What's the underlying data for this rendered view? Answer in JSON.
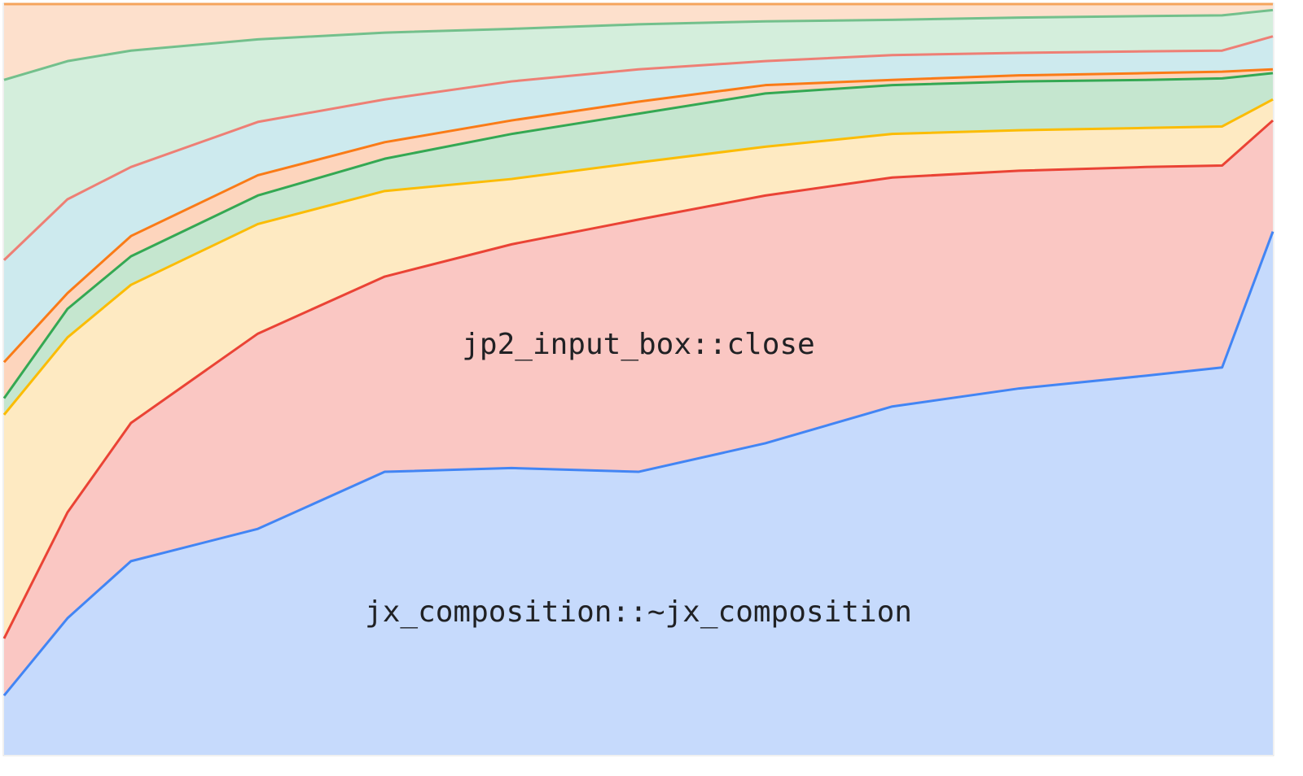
{
  "chart_data": {
    "type": "stacked-area",
    "x": [
      0,
      5,
      10,
      20,
      30,
      40,
      50,
      60,
      70,
      80,
      90,
      96,
      100
    ],
    "xlim": [
      0,
      100
    ],
    "ylim": [
      0,
      100
    ],
    "series": [
      {
        "name": "jx_composition::~jx_composition",
        "color": "#4285f4",
        "fill": "#c6dafc",
        "values": [
          7.9,
          18.2,
          25.8,
          30.1,
          37.7,
          38.2,
          37.7,
          41.5,
          46.4,
          48.8,
          50.5,
          51.6,
          69.7
        ]
      },
      {
        "name": "jp2_input_box::close",
        "color": "#ea4335",
        "fill": "#fac7c3",
        "values": [
          7.6,
          14.1,
          18.4,
          26.0,
          26.0,
          29.8,
          33.6,
          33.0,
          30.5,
          29.0,
          27.8,
          26.9,
          14.8
        ]
      },
      {
        "color": "#fbbc04",
        "fill": "#feeac2",
        "values": [
          29.8,
          23.3,
          18.4,
          14.6,
          11.4,
          8.7,
          7.6,
          6.5,
          5.8,
          5.4,
          5.2,
          5.2,
          2.8
        ]
      },
      {
        "color": "#34a853",
        "fill": "#c5e6cf",
        "values": [
          2.2,
          3.8,
          3.8,
          3.8,
          4.3,
          6.0,
          6.5,
          7.1,
          6.5,
          6.5,
          6.4,
          6.4,
          3.5
        ]
      },
      {
        "color": "#fa7b17",
        "fill": "#fdd5bd",
        "values": [
          4.8,
          2.1,
          2.7,
          2.7,
          2.2,
          1.8,
          1.6,
          1.1,
          0.7,
          0.8,
          0.9,
          0.9,
          0.5
        ]
      },
      {
        "color": "#ee7f75",
        "fill": "#cdeaee",
        "values": [
          13.6,
          12.5,
          9.2,
          7.1,
          5.7,
          5.2,
          4.3,
          3.2,
          3.3,
          3.0,
          2.9,
          2.8,
          4.4
        ]
      },
      {
        "color": "#73c08c",
        "fill": "#d4eedc",
        "values": [
          24.0,
          18.4,
          15.5,
          11.0,
          8.9,
          7.0,
          6.0,
          5.3,
          4.7,
          4.7,
          4.7,
          4.7,
          3.5
        ]
      },
      {
        "color": "#f5a45c",
        "fill": "#fde0cc",
        "values": [
          10.1,
          7.6,
          6.2,
          4.7,
          3.8,
          3.3,
          2.7,
          2.3,
          2.1,
          1.8,
          1.6,
          1.5,
          0.8
        ]
      }
    ],
    "label_at_x": 50
  }
}
